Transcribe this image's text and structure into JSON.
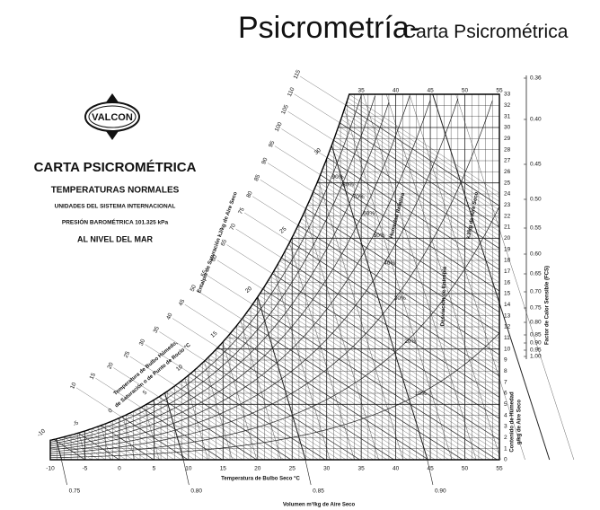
{
  "slide": {
    "title": "Psicrometría-",
    "subtitle": "Carta Psicrométrica"
  },
  "logo": {
    "text": "VALCON"
  },
  "header": {
    "title": "CARTA PSICROMÉTRICA",
    "line1": "TEMPERATURAS NORMALES",
    "line2": "UNIDADES DEL SISTEMA INTERNACIONAL",
    "line3": "PRESIÓN BAROMÉTRICA    101.325 kPa",
    "line4": "AL NIVEL DEL MAR"
  },
  "axes": {
    "dry_bulb_title": "Temperatura de Bulbo Seco   °C",
    "volume_title": "Volumen    m³/kg de Aire Seco",
    "humidity_title_1": "Contenido de Humedad",
    "humidity_title_2": "g/kg de Aire Seco",
    "shf_title": "Factor de Calor Sensible (FCS)",
    "enthalpy_title": "Entalpía de Saturación   kJ/kg de Aire Seco",
    "wet_bulb_title_1": "Temperatura de Bulbo Húmedo,",
    "wet_bulb_title_2": "de Saturación o de Punto de Rocío  °C",
    "rh_title": "Humedad Relativa",
    "entropy_title": "Desviación de Entropía",
    "entropy_units": "kJ/kg de Aire Seco",
    "dry_bulb_ticks": [
      -10,
      -5,
      0,
      5,
      10,
      15,
      20,
      25,
      30,
      35,
      40,
      45,
      50,
      55
    ],
    "top_ticks": [
      35,
      40,
      45,
      50,
      55
    ],
    "humidity_ticks": [
      0,
      1,
      2,
      3,
      4,
      5,
      6,
      7,
      8,
      9,
      10,
      11,
      12,
      13,
      14,
      15,
      16,
      17,
      18,
      19,
      20,
      21,
      22,
      23,
      24,
      25,
      26,
      27,
      28,
      29,
      30,
      31,
      32,
      33
    ],
    "volume_ticks": [
      0.75,
      {
        "value": 0.8,
        "label": "0.80"
      },
      0.85,
      {
        "value": 0.9,
        "label": "0.90"
      }
    ],
    "enthalpy_ticks": [
      10,
      15,
      20,
      25,
      30,
      35,
      40,
      45,
      50,
      55,
      60,
      65,
      70,
      75,
      80,
      85,
      90,
      95,
      100,
      105,
      110,
      115
    ],
    "wet_bulb_ticks": [
      -10,
      -5,
      0,
      5,
      10,
      15,
      20,
      25,
      30
    ],
    "rh_labels": [
      "10%",
      "20%",
      "30%",
      "40%",
      "50%",
      "60%",
      "70%",
      "80%",
      "90%"
    ],
    "shf_ticks": [
      "0.36",
      "0.40",
      "0.45",
      "0.50",
      "0.55",
      "0.60",
      "0.65",
      "0.70",
      "0.75",
      "0.80",
      "0.85",
      "0.90",
      "0.95",
      "1.00"
    ]
  }
}
